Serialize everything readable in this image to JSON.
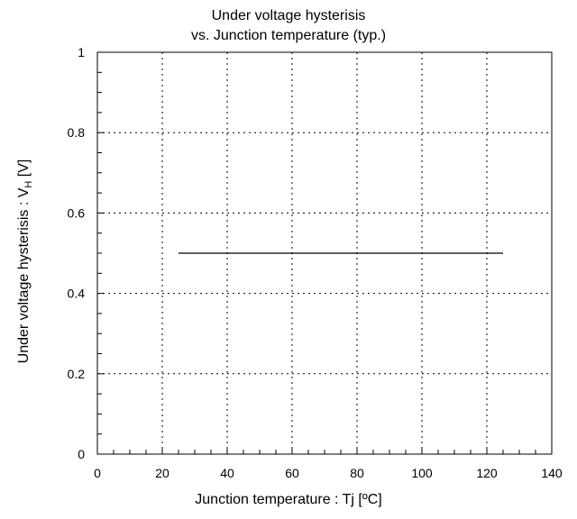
{
  "chart_data": {
    "type": "line",
    "title": [
      "Under voltage hysterisis",
      "vs. Junction temperature (typ.)"
    ],
    "xlabel": "Junction temperature : Tj [ºC]",
    "ylabel": {
      "prefix": "Under voltage hysterisis : V",
      "subscript": "H",
      "suffix": " [V]"
    },
    "xlim": [
      0,
      140
    ],
    "ylim": [
      0,
      1
    ],
    "xticks": [
      0,
      20,
      40,
      60,
      80,
      100,
      120,
      140
    ],
    "yticks": [
      0,
      0.2,
      0.4,
      0.6,
      0.8,
      1
    ],
    "ytick_labels": [
      "0",
      "0.2",
      "0.4",
      "0.6",
      "0.8",
      "1"
    ],
    "grid": true,
    "series": [
      {
        "x": [
          25,
          125
        ],
        "y": [
          0.5,
          0.5
        ],
        "color": "#000000"
      }
    ]
  }
}
